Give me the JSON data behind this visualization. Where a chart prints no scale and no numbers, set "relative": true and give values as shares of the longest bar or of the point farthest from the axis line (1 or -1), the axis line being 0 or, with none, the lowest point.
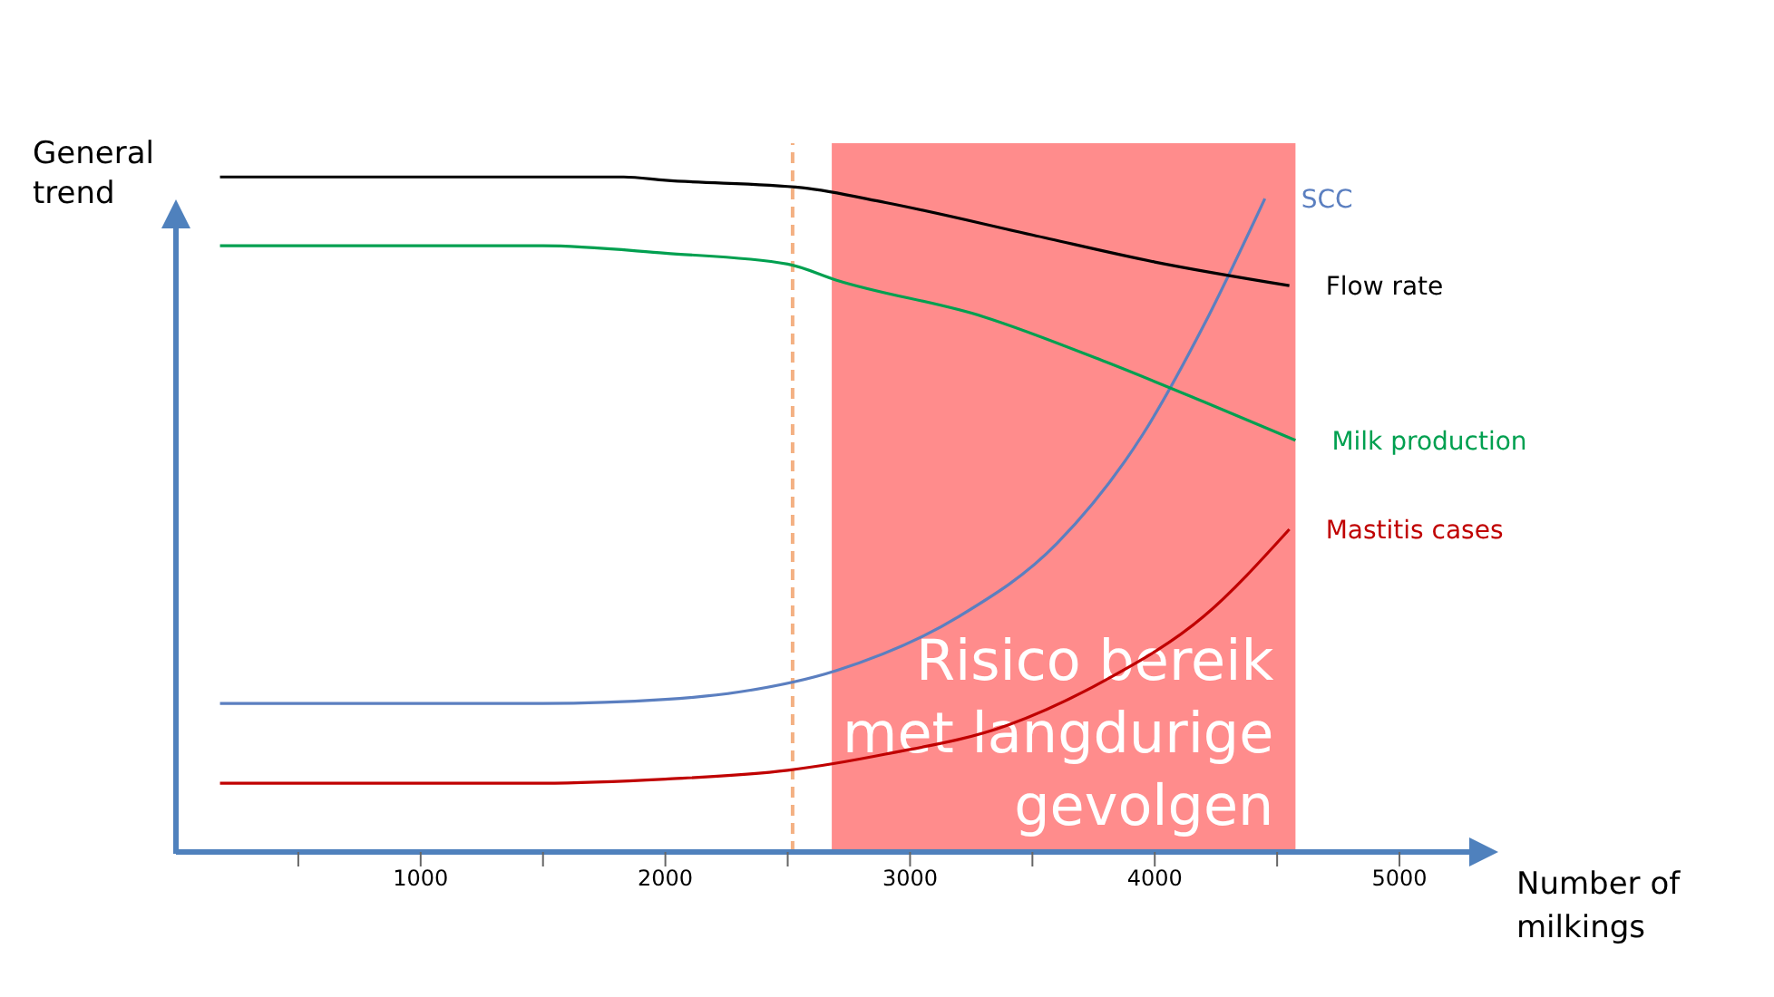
{
  "chart_data": {
    "type": "line",
    "relative": true,
    "xlabel": "Number of milkings",
    "ylabel": "General trend",
    "xlim": [
      0,
      5300
    ],
    "xticks": [
      {
        "value": 500,
        "label": null
      },
      1000,
      {
        "value": 1500,
        "label": null
      },
      2000,
      {
        "value": 2500,
        "label": null
      },
      3000,
      {
        "value": 3500,
        "label": null
      },
      4000,
      {
        "value": 4500,
        "label": null
      },
      5000
    ],
    "series": [
      {
        "name": "SCC",
        "color": "#5b7fc0",
        "x": [
          180,
          1500,
          2000,
          2300,
          2700,
          3200,
          3600,
          3950,
          4200,
          4450
        ],
        "values": [
          0.22,
          0.22,
          0.226,
          0.237,
          0.269,
          0.349,
          0.457,
          0.618,
          0.78,
          0.968
        ]
      },
      {
        "name": "Flow rate",
        "color": "#000000",
        "x": [
          180,
          1830,
          2000,
          2560,
          2900,
          3500,
          4000,
          4550
        ],
        "values": [
          1.0,
          1.0,
          0.995,
          0.984,
          0.962,
          0.914,
          0.874,
          0.839
        ]
      },
      {
        "name": "Milk production",
        "color": "#00a050",
        "x": [
          180,
          1500,
          2000,
          2500,
          2700,
          3300,
          3800,
          4200,
          4575
        ],
        "values": [
          0.898,
          0.898,
          0.887,
          0.871,
          0.847,
          0.793,
          0.726,
          0.667,
          0.61
        ]
      },
      {
        "name": "Mastitis cases",
        "color": "#c00000",
        "x": [
          180,
          1500,
          2000,
          2500,
          2900,
          3400,
          3800,
          4200,
          4550
        ],
        "values": [
          0.102,
          0.102,
          0.108,
          0.121,
          0.145,
          0.188,
          0.255,
          0.349,
          0.478
        ]
      }
    ],
    "ref_lines": [
      {
        "axis": "x",
        "value": 2520,
        "color": "#f4b183",
        "line_style": "dashed"
      }
    ],
    "bands": [
      {
        "axis": "x",
        "from": 2680,
        "to": 4575,
        "label": "Risico bereik met langdurige gevolgen",
        "color": "#ff8080"
      }
    ],
    "legend": false,
    "grid": false,
    "marker": "none",
    "line_style": "solid"
  }
}
